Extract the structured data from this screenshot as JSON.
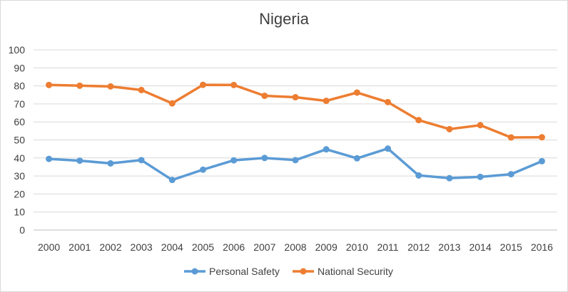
{
  "chart_data": {
    "type": "line",
    "title": "Nigeria",
    "xlabel": "",
    "ylabel": "",
    "ylim": [
      0,
      100
    ],
    "yticks": [
      0,
      10,
      20,
      30,
      40,
      50,
      60,
      70,
      80,
      90,
      100
    ],
    "grid": true,
    "legend_position": "bottom",
    "x": [
      "2000",
      "2001",
      "2002",
      "2003",
      "2004",
      "2005",
      "2006",
      "2007",
      "2008",
      "2009",
      "2010",
      "2011",
      "2012",
      "2013",
      "2014",
      "2015",
      "2016"
    ],
    "series": [
      {
        "name": "Personal Safety",
        "color": "#5b9bd5",
        "values": [
          39.5,
          38.5,
          37,
          38.8,
          27.8,
          33.5,
          38.7,
          40,
          38.8,
          44.8,
          39.8,
          45.2,
          30.3,
          28.8,
          29.5,
          31,
          38.2
        ]
      },
      {
        "name": "National Security",
        "color": "#ed7d31",
        "values": [
          80.5,
          80.1,
          79.7,
          77.7,
          70.3,
          80.6,
          80.5,
          74.5,
          73.7,
          71.7,
          76.3,
          71,
          61,
          56,
          58.2,
          51.4,
          51.5
        ]
      }
    ]
  }
}
